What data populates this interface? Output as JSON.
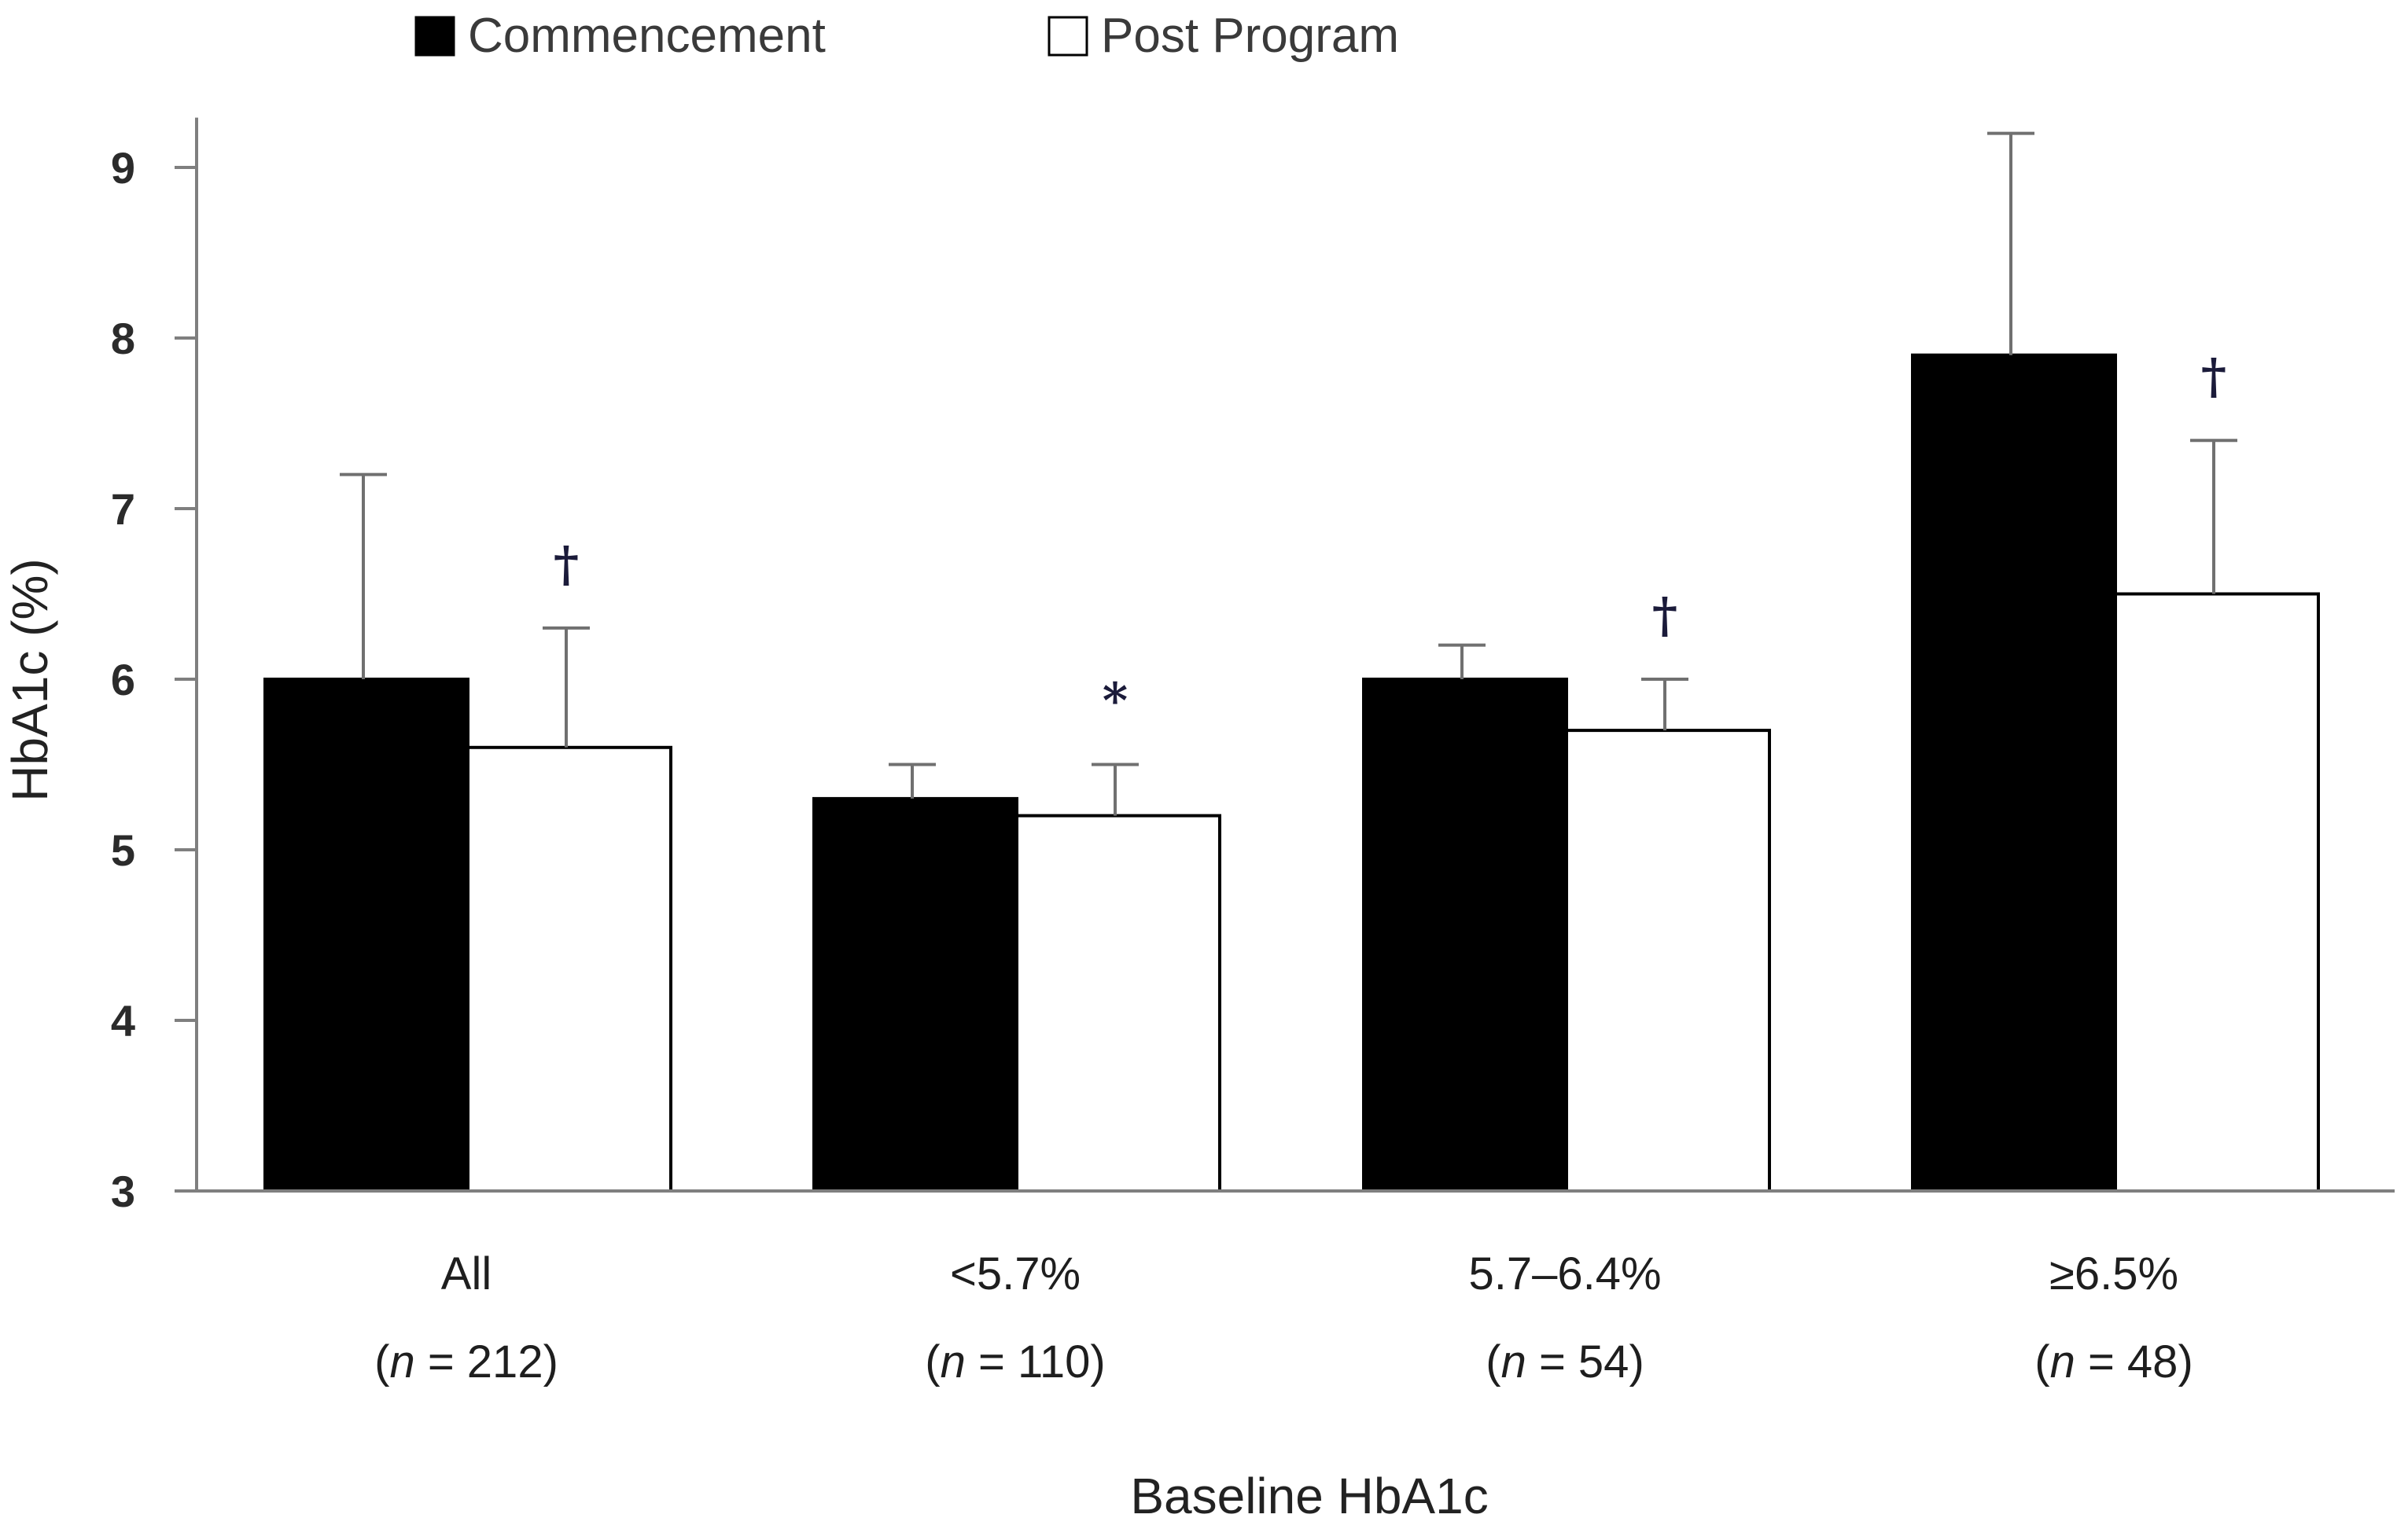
{
  "chart_data": {
    "type": "bar",
    "title": "",
    "xlabel": "Baseline HbA1c",
    "ylabel": "HbA1c (%)",
    "ylim": [
      3,
      9.2
    ],
    "yticks": [
      3,
      4,
      5,
      6,
      7,
      8,
      9
    ],
    "grid": false,
    "legend_position": "top-center",
    "categories": [
      {
        "label": "All",
        "n_prefix": "(",
        "n_italic": "n",
        "n_suffix": " = 212)"
      },
      {
        "label": "<5.7%",
        "n_prefix": "(",
        "n_italic": "n",
        "n_suffix": " = 110)"
      },
      {
        "label": "5.7–6.4%",
        "n_prefix": "(",
        "n_italic": "n",
        "n_suffix": " = 54)"
      },
      {
        "label": "≥6.5%",
        "n_prefix": "(",
        "n_italic": "n",
        "n_suffix": " = 48)"
      }
    ],
    "series": [
      {
        "name": "Commencement",
        "color": "#000000",
        "values": [
          6.0,
          5.3,
          6.0,
          7.9
        ],
        "errors": [
          1.2,
          0.2,
          0.2,
          1.3
        ]
      },
      {
        "name": "Post Program",
        "color": "#ffffff",
        "values": [
          5.6,
          5.2,
          5.7,
          6.5
        ],
        "errors": [
          0.7,
          0.3,
          0.3,
          0.9
        ]
      }
    ],
    "annotations": [
      "†",
      "*",
      "†",
      "†"
    ]
  }
}
